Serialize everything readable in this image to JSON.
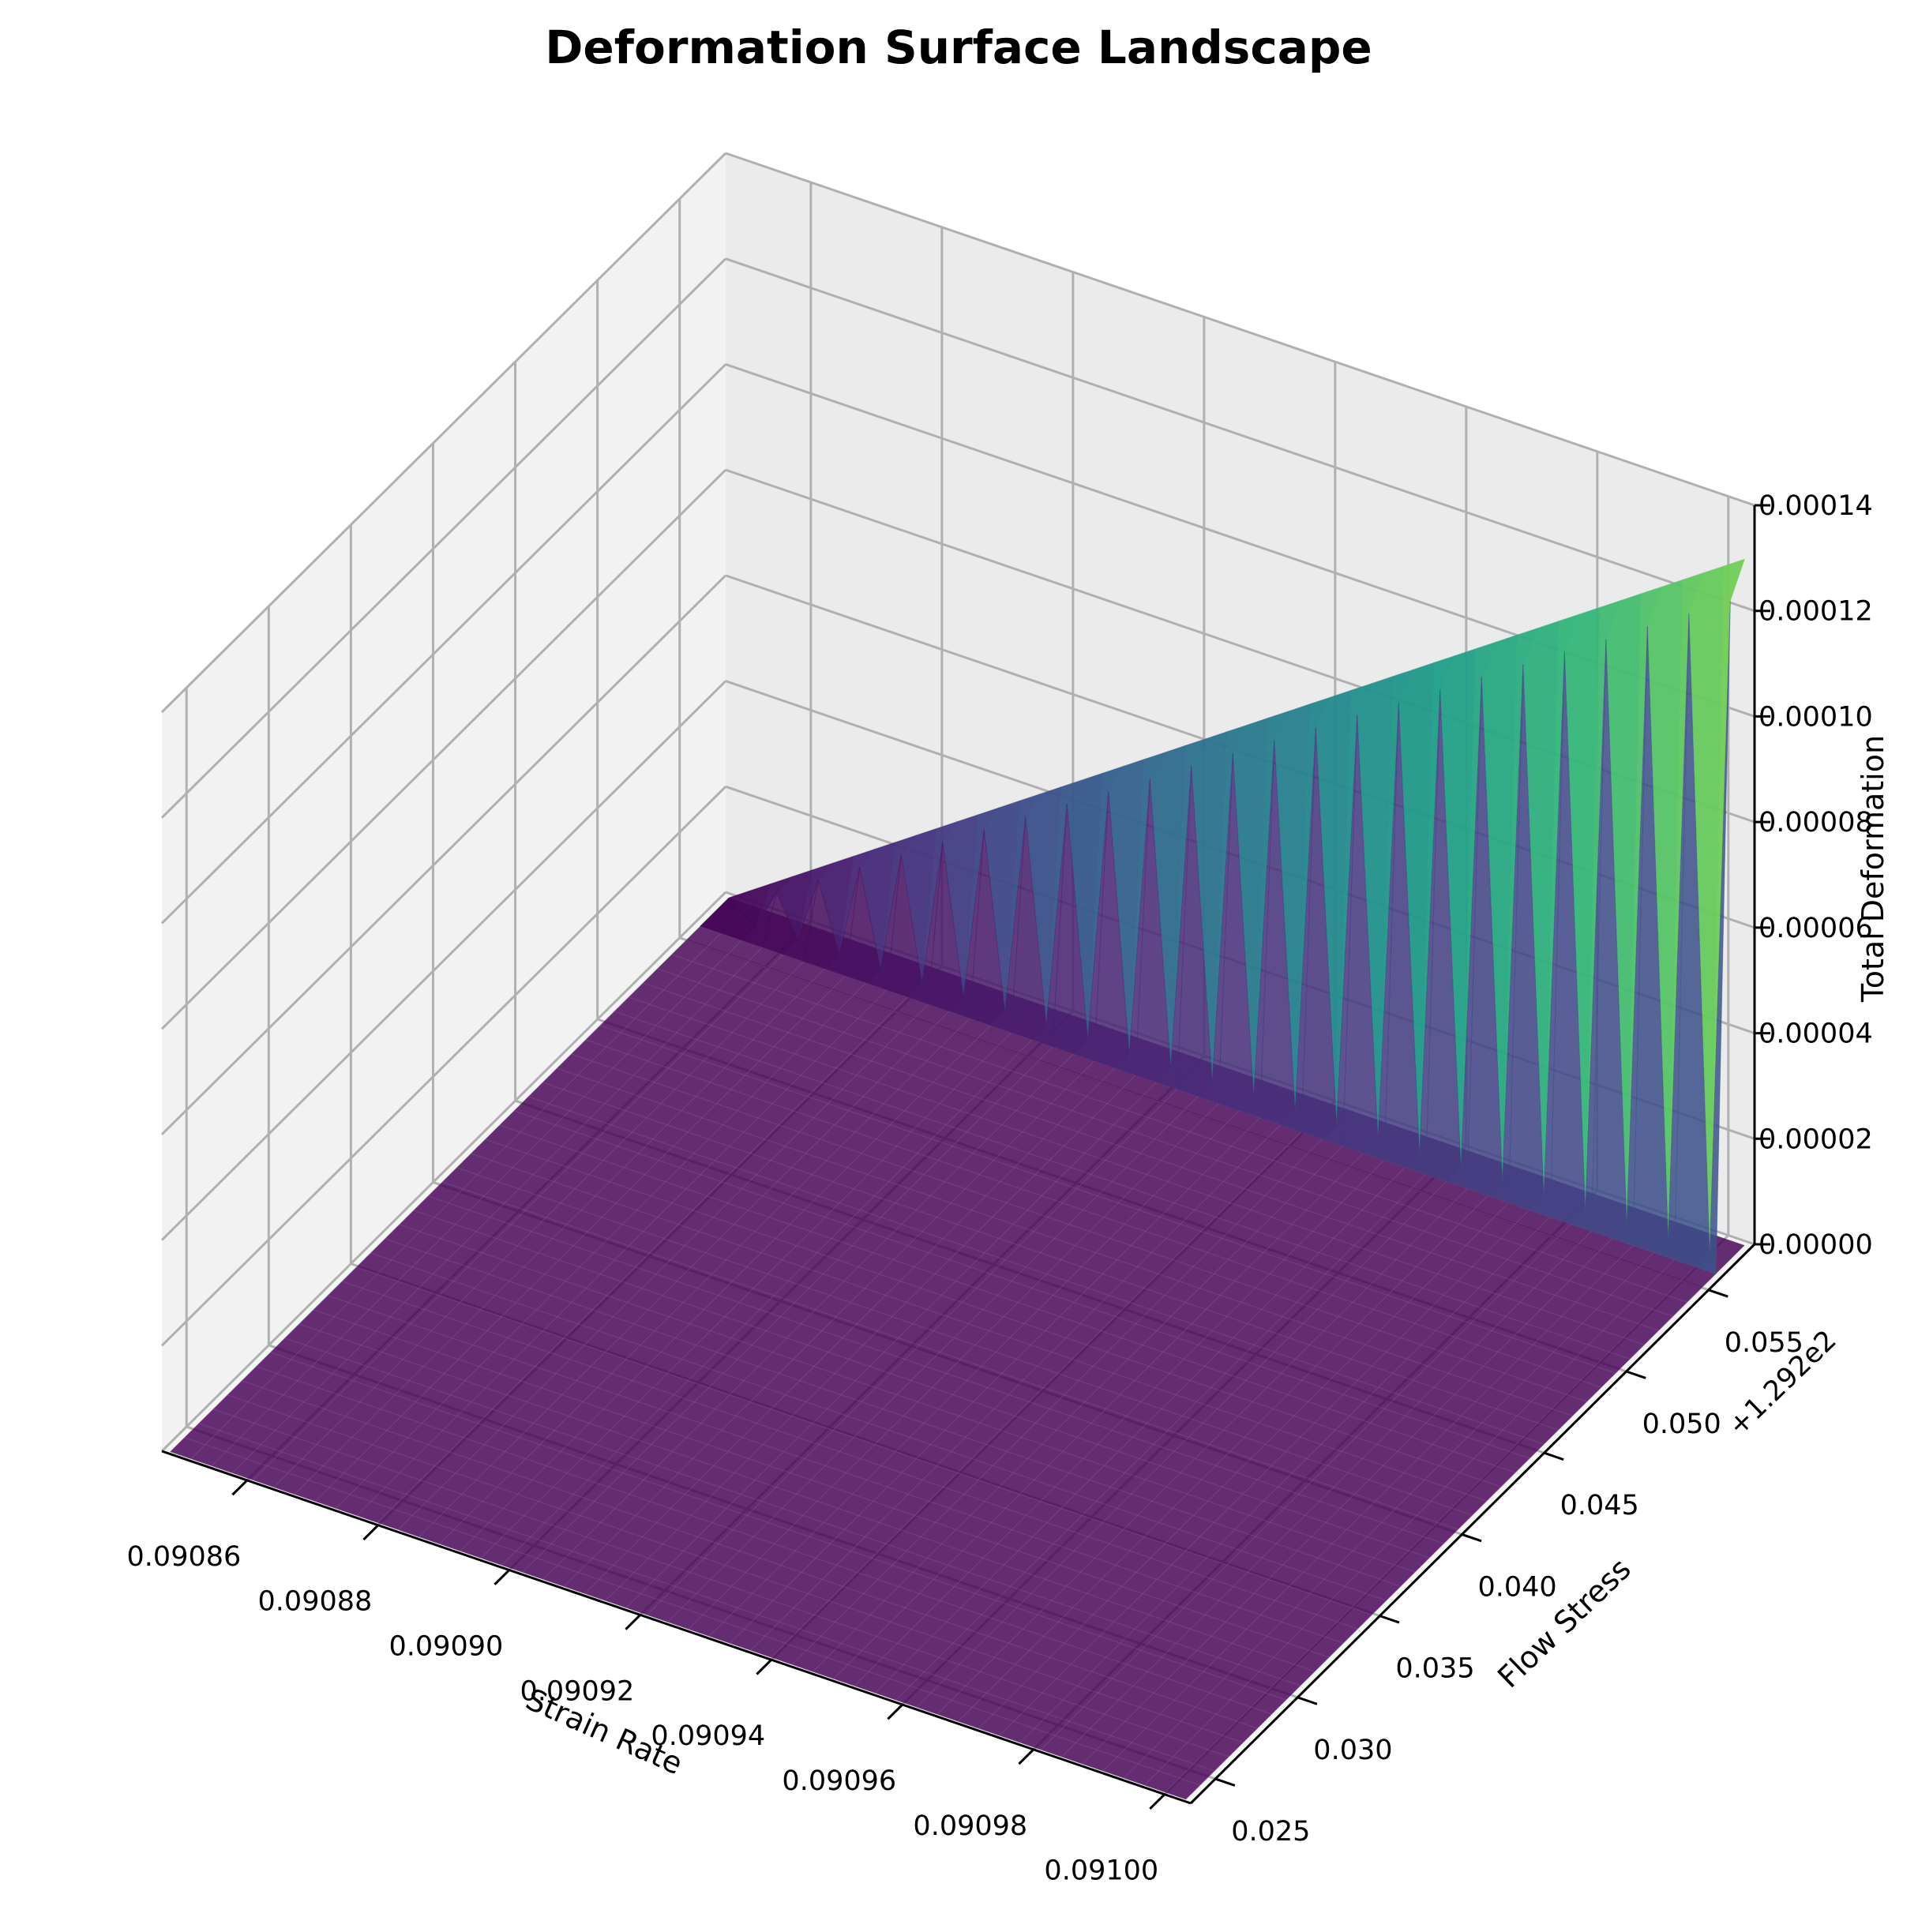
{
  "chart_data": {
    "type": "surface",
    "title": "Deformation Surface Landscape",
    "xlabel": "Strain Rate",
    "ylabel": "Flow Stress",
    "zlabel": "Total Deformation",
    "y_offset_label": "+1.292e2",
    "colormap": "viridis",
    "x_ticks": [
      "0.09086",
      "0.09088",
      "0.09090",
      "0.09092",
      "0.09094",
      "0.09096",
      "0.09098",
      "0.09100"
    ],
    "y_ticks": [
      "0.025",
      "0.030",
      "0.035",
      "0.040",
      "0.045",
      "0.050",
      "0.055"
    ],
    "z_ticks": [
      "0.00000",
      "0.00002",
      "0.00004",
      "0.00006",
      "0.00008",
      "0.00010",
      "0.00012",
      "0.00014"
    ],
    "xlim": [
      0.090847,
      0.091004
    ],
    "ylim": [
      0.0235,
      0.0578
    ],
    "zlim": [
      0,
      0.00014
    ],
    "x_range": [
      0.090848,
      0.091003
    ],
    "y_range": [
      0.0236,
      0.0576
    ],
    "z_peak": 0.00013,
    "grid": true,
    "pane_color": "#f2f2f2"
  }
}
